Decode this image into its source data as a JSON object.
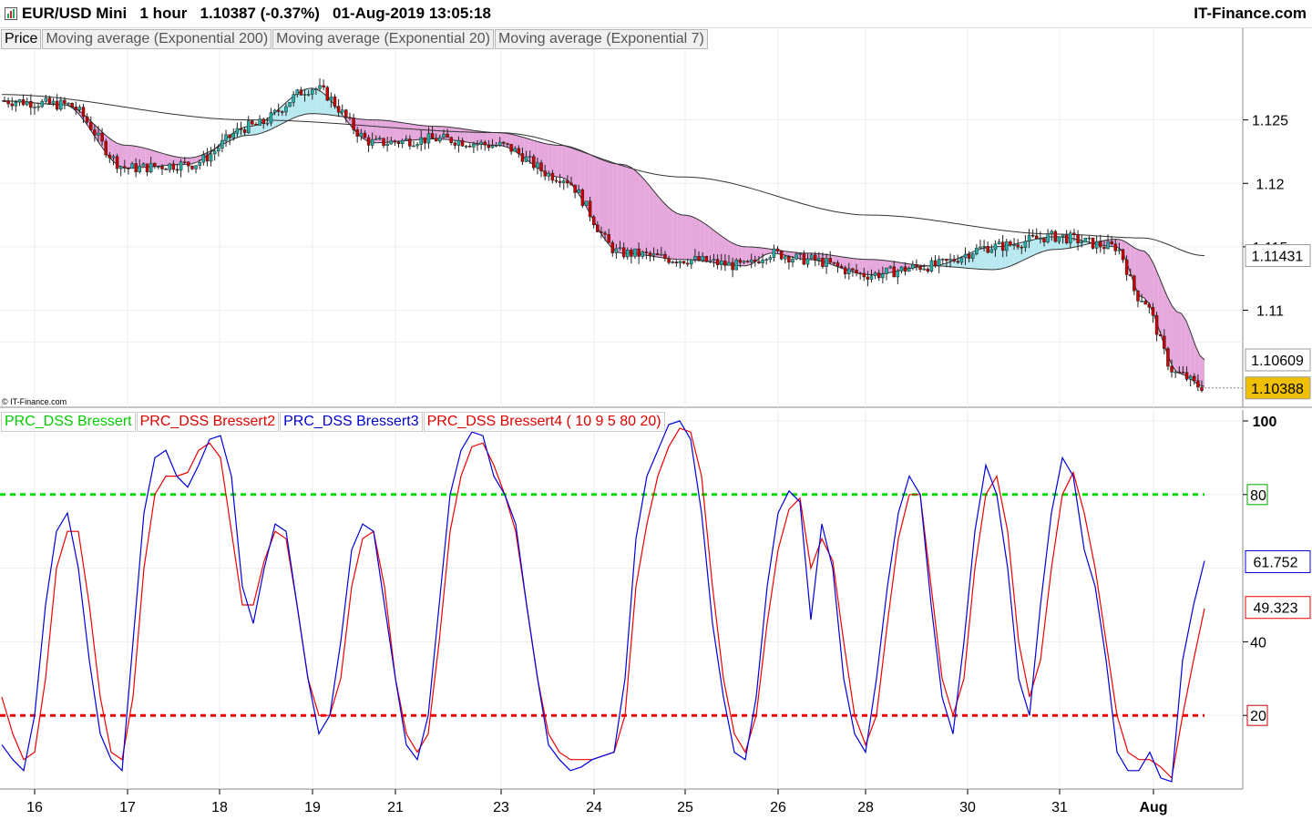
{
  "header": {
    "title": "EUR/USD Mini   1 hour   1.10387 (-0.37%)   01-Aug-2019 13:05:18",
    "brand": "IT-Finance.com"
  },
  "price_panel": {
    "legend": [
      "Price",
      "Moving average (Exponential 200)",
      "Moving average (Exponential 20)",
      "Moving average (Exponential 7)"
    ],
    "copyright": "© IT-Finance.com"
  },
  "oscillator_panel": {
    "legend": [
      {
        "text": "PRC_DSS Bressert",
        "color": "#00cc00"
      },
      {
        "text": "PRC_DSS Bressert2",
        "color": "#e00000"
      },
      {
        "text": "PRC_DSS Bressert3",
        "color": "#0000cc"
      },
      {
        "text": "PRC_DSS Bressert4 ( 10 9 5 80 20)",
        "color": "#e00000"
      }
    ]
  },
  "colors": {
    "bull": "#20b2aa",
    "bear": "#cc0000",
    "ema_fill_bear": "#e6a8dc",
    "ema_fill_bull": "#b8e8f0",
    "level_high": "#00dd00",
    "level_low": "#ee0000",
    "dss_fast": "#0000dd",
    "dss_slow": "#ee0000",
    "current_price_bg": "#f0c000"
  },
  "chart_data": [
    {
      "type": "candlestick",
      "title": "EUR/USD Mini 1 hour",
      "x_ticks": [
        "16",
        "17",
        "18",
        "19",
        "21",
        "23",
        "24",
        "25",
        "26",
        "28",
        "30",
        "31",
        "Aug"
      ],
      "y_ticks": [
        "1.125",
        "1.12",
        "1.115",
        "1.11"
      ],
      "ylim": [
        1.1025,
        1.1305
      ],
      "price_labels": {
        "ema200": "1.11431",
        "ema20": "1.10609",
        "last": "1.10388"
      },
      "series": [
        {
          "name": "Moving average (Exponential 200)",
          "anchors": [
            [
              0,
              1.127
            ],
            [
              0.2,
              1.125
            ],
            [
              0.4,
              1.124
            ],
            [
              0.55,
              1.1205
            ],
            [
              0.7,
              1.1175
            ],
            [
              0.85,
              1.116
            ],
            [
              0.92,
              1.1157
            ],
            [
              0.97,
              1.1143
            ]
          ]
        },
        {
          "name": "Moving average (Exponential 20)",
          "anchors": [
            [
              0,
              1.1265
            ],
            [
              0.05,
              1.1262
            ],
            [
              0.1,
              1.123
            ],
            [
              0.15,
              1.122
            ],
            [
              0.2,
              1.1238
            ],
            [
              0.25,
              1.1255
            ],
            [
              0.3,
              1.125
            ],
            [
              0.35,
              1.1245
            ],
            [
              0.4,
              1.124
            ],
            [
              0.45,
              1.123
            ],
            [
              0.5,
              1.1215
            ],
            [
              0.55,
              1.1175
            ],
            [
              0.6,
              1.115
            ],
            [
              0.65,
              1.1145
            ],
            [
              0.7,
              1.114
            ],
            [
              0.75,
              1.1135
            ],
            [
              0.8,
              1.1132
            ],
            [
              0.85,
              1.1148
            ],
            [
              0.9,
              1.1156
            ],
            [
              0.92,
              1.1147
            ],
            [
              0.95,
              1.1098
            ],
            [
              0.97,
              1.1061
            ]
          ]
        },
        {
          "name": "Moving average (Exponential 7)",
          "anchors": [
            [
              0,
              1.1265
            ],
            [
              0.05,
              1.1262
            ],
            [
              0.1,
              1.1212
            ],
            [
              0.15,
              1.1215
            ],
            [
              0.2,
              1.1245
            ],
            [
              0.25,
              1.1275
            ],
            [
              0.3,
              1.1232
            ],
            [
              0.35,
              1.1235
            ],
            [
              0.4,
              1.123
            ],
            [
              0.45,
              1.1205
            ],
            [
              0.5,
              1.1145
            ],
            [
              0.55,
              1.114
            ],
            [
              0.6,
              1.1135
            ],
            [
              0.62,
              1.1145
            ],
            [
              0.65,
              1.114
            ],
            [
              0.7,
              1.1128
            ],
            [
              0.75,
              1.1135
            ],
            [
              0.8,
              1.115
            ],
            [
              0.85,
              1.1158
            ],
            [
              0.9,
              1.115
            ],
            [
              0.92,
              1.111
            ],
            [
              0.95,
              1.105
            ],
            [
              0.97,
              1.104
            ]
          ]
        }
      ]
    },
    {
      "type": "line",
      "ylim": [
        0,
        100
      ],
      "y_ticks": [
        "100",
        "80",
        "40",
        "20"
      ],
      "levels": [
        80,
        20
      ],
      "value_labels": {
        "fast": "61.752",
        "slow": "49.323"
      },
      "series": [
        {
          "name": "PRC_DSS Bressert3",
          "values": [
            12,
            8,
            5,
            20,
            50,
            70,
            75,
            60,
            35,
            15,
            8,
            5,
            40,
            75,
            90,
            92,
            85,
            82,
            88,
            95,
            96,
            85,
            55,
            45,
            60,
            72,
            70,
            50,
            30,
            15,
            20,
            40,
            65,
            72,
            70,
            50,
            30,
            12,
            8,
            20,
            50,
            80,
            92,
            97,
            96,
            85,
            80,
            72,
            50,
            30,
            12,
            8,
            5,
            6,
            8,
            9,
            10,
            30,
            68,
            85,
            92,
            99,
            100,
            95,
            75,
            45,
            25,
            10,
            8,
            25,
            55,
            75,
            81,
            78,
            46,
            72,
            60,
            30,
            15,
            10,
            30,
            55,
            75,
            85,
            80,
            50,
            25,
            15,
            40,
            70,
            88,
            80,
            60,
            30,
            20,
            50,
            75,
            90,
            85,
            65,
            55,
            35,
            10,
            5,
            5,
            10,
            3,
            2,
            35,
            50,
            62
          ]
        },
        {
          "name": "PRC_DSS Bressert4",
          "values": [
            25,
            15,
            8,
            10,
            30,
            60,
            70,
            70,
            50,
            25,
            10,
            8,
            25,
            60,
            80,
            85,
            85,
            86,
            92,
            94,
            90,
            70,
            50,
            50,
            62,
            70,
            68,
            50,
            30,
            20,
            20,
            30,
            55,
            68,
            70,
            55,
            30,
            15,
            10,
            15,
            40,
            70,
            85,
            93,
            94,
            88,
            80,
            70,
            50,
            30,
            15,
            10,
            8,
            8,
            8,
            9,
            10,
            20,
            55,
            72,
            85,
            93,
            98,
            97,
            85,
            55,
            30,
            15,
            10,
            20,
            45,
            65,
            76,
            79,
            60,
            68,
            62,
            40,
            20,
            12,
            20,
            45,
            68,
            80,
            80,
            55,
            30,
            20,
            30,
            60,
            80,
            85,
            70,
            40,
            25,
            35,
            60,
            80,
            86,
            75,
            60,
            40,
            20,
            10,
            8,
            8,
            6,
            3,
            20,
            35,
            49
          ]
        }
      ]
    }
  ]
}
